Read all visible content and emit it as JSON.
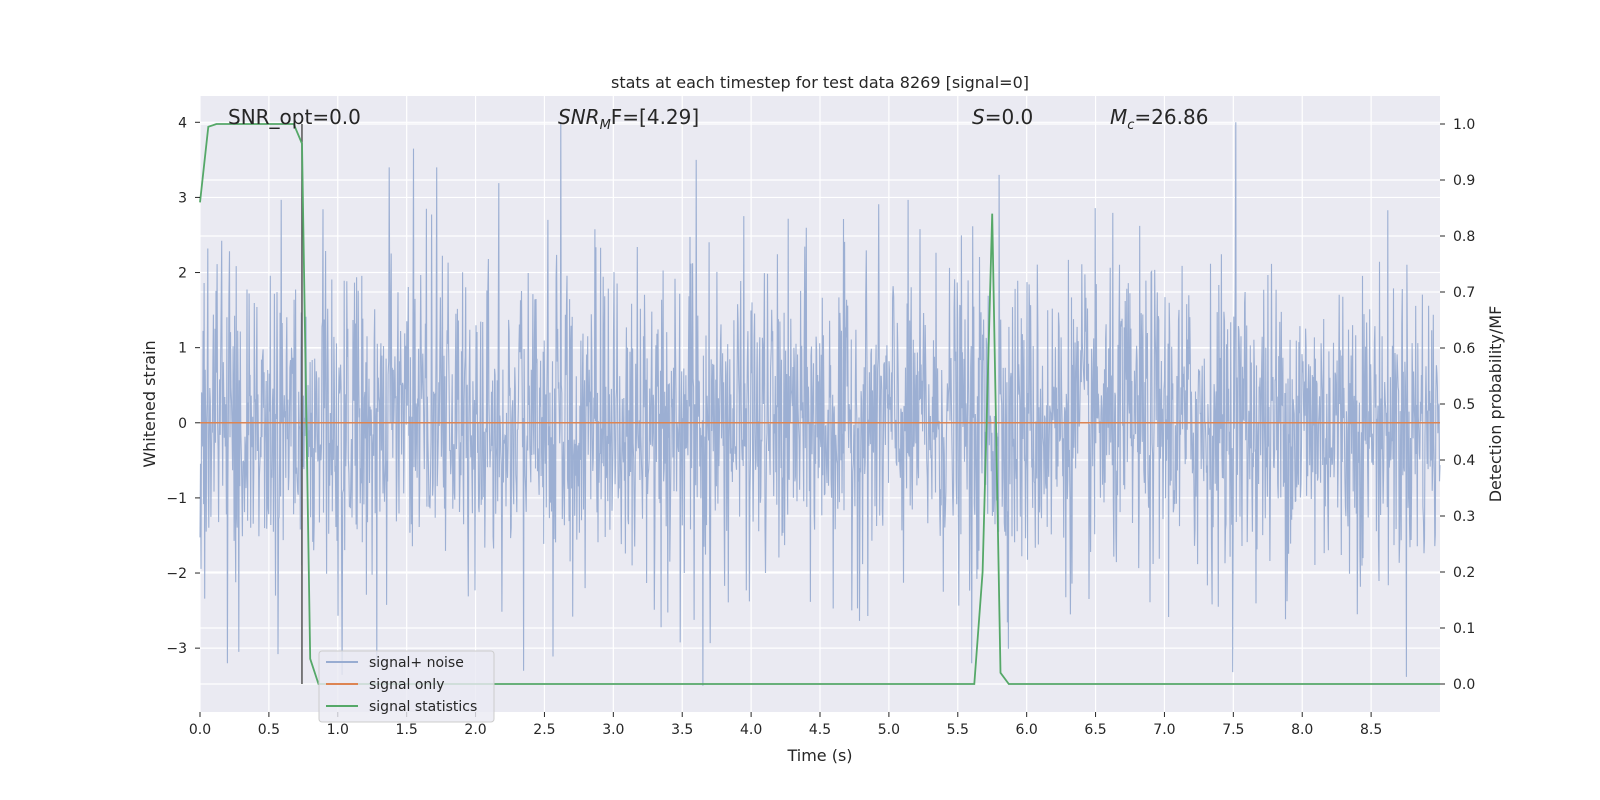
{
  "chart_data": {
    "type": "line",
    "title": "stats at each timestep for test data 8269 [signal=0]",
    "xlabel": "Time (s)",
    "ylabel_left": "Whitened strain",
    "ylabel_right": "Detection probability/MF",
    "xlim": [
      0.0,
      9.0
    ],
    "ylim_left": [
      -3.85,
      4.35
    ],
    "ylim_right": [
      -0.05,
      1.05
    ],
    "x_ticks": [
      "0.0",
      "0.5",
      "1.0",
      "1.5",
      "2.0",
      "2.5",
      "3.0",
      "3.5",
      "4.0",
      "4.5",
      "5.0",
      "5.5",
      "6.0",
      "6.5",
      "7.0",
      "7.5",
      "8.0",
      "8.5"
    ],
    "y_ticks_left": [
      "−3",
      "−2",
      "−1",
      "0",
      "1",
      "2",
      "3",
      "4"
    ],
    "y_ticks_right": [
      "0.0",
      "0.1",
      "0.2",
      "0.3",
      "0.4",
      "0.5",
      "0.6",
      "0.7",
      "0.8",
      "0.9",
      "1.0"
    ],
    "grid": true,
    "legend_position": "lower-left",
    "annotations": {
      "snr_opt": "SNR_opt=0.0",
      "snr_mf_prefix": "SNR",
      "snr_mf_sub": "M",
      "snr_mf_suffix": "F=[4.29]",
      "s_prefix": "S",
      "s_suffix": "=0.0",
      "mc_prefix": "M",
      "mc_sub": "c",
      "mc_suffix": "=26.86"
    },
    "marker_line_x": 0.74,
    "series": [
      {
        "name": "signal+ noise",
        "color": "#98acd1",
        "axis": "left",
        "description": "whitened strain noise, approx N(0,1), peaks near +4.0 at t=2.6 and t=7.5, dips near -3.5 at t=3.65",
        "highlights": [
          [
            2.62,
            4.0
          ],
          [
            7.52,
            4.0
          ],
          [
            1.55,
            3.65
          ],
          [
            3.6,
            3.5
          ],
          [
            5.8,
            3.3
          ],
          [
            3.65,
            -3.5
          ],
          [
            2.35,
            -3.3
          ],
          [
            5.6,
            -3.2
          ],
          [
            0.28,
            -3.05
          ]
        ]
      },
      {
        "name": "signal only",
        "color": "#dd8452",
        "axis": "left",
        "x": [
          0.0,
          9.0
        ],
        "y": [
          0.0,
          0.0
        ]
      },
      {
        "name": "signal statistics",
        "color": "#55a868",
        "axis": "right",
        "x": [
          0.0,
          0.06,
          0.12,
          0.68,
          0.74,
          0.8,
          0.86,
          5.62,
          5.68,
          5.75,
          5.81,
          5.87,
          9.0
        ],
        "y": [
          0.86,
          0.995,
          1.0,
          1.0,
          0.965,
          0.045,
          0.0,
          0.0,
          0.2,
          0.84,
          0.02,
          0.0,
          0.0
        ]
      }
    ]
  }
}
